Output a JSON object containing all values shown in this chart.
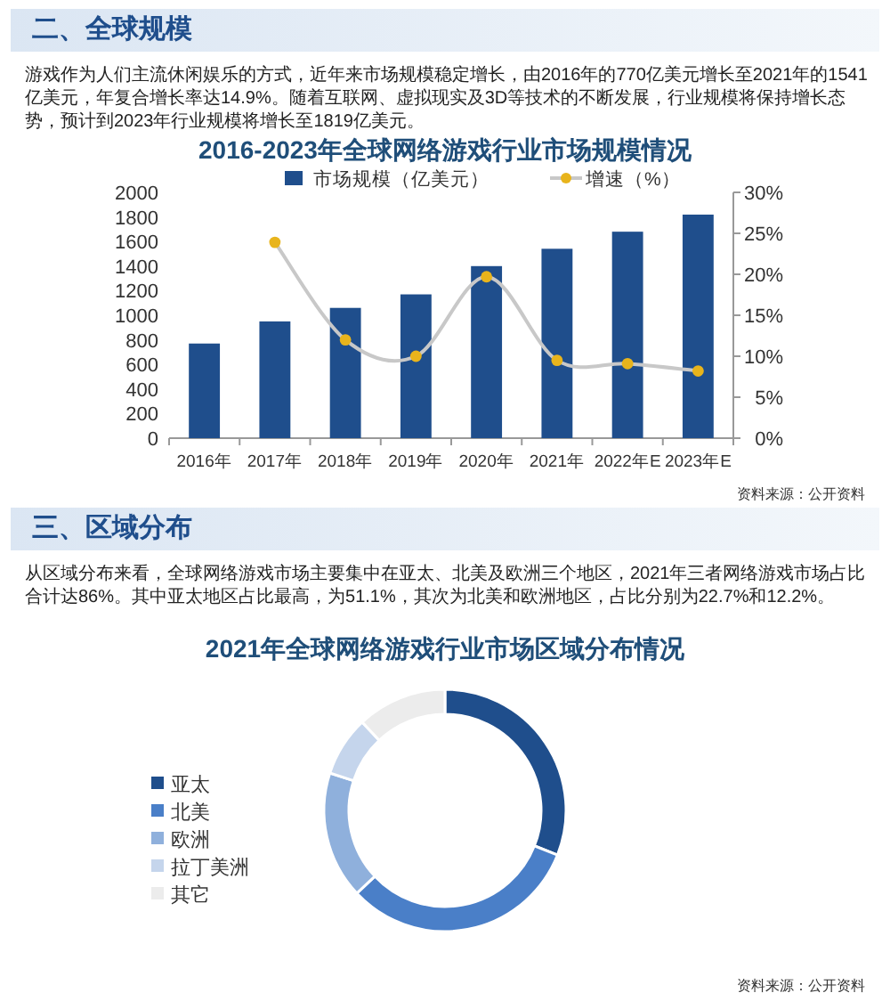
{
  "chart_data": [
    {
      "type": "bar",
      "title": "2016-2023年全球网络游戏行业市场规模情况",
      "categories": [
        "2016年",
        "2017年",
        "2018年",
        "2019年",
        "2020年",
        "2021年",
        "2022年E",
        "2023年E"
      ],
      "series": [
        {
          "name": "市场规模（亿美元）",
          "color": "#1f4e8c",
          "values": [
            770,
            950,
            1060,
            1170,
            1400,
            1541,
            1680,
            1819
          ]
        },
        {
          "name": "增速（%）",
          "type": "line",
          "axis": "y2",
          "color": "#e8b41c",
          "values": [
            null,
            23.9,
            12,
            10,
            19.7,
            9.5,
            9.1,
            8.2
          ]
        }
      ],
      "ylim": [
        0,
        2000
      ],
      "yticks": [
        0,
        200,
        400,
        600,
        800,
        1000,
        1200,
        1400,
        1600,
        1800,
        2000
      ],
      "y2lim": [
        0,
        30
      ],
      "y2ticks": [
        {
          "value": 0,
          "label": "0%"
        },
        {
          "value": 5,
          "label": "5%"
        },
        {
          "value": 10,
          "label": "10%"
        },
        {
          "value": 15,
          "label": "15%"
        },
        {
          "value": 20,
          "label": "20%"
        },
        {
          "value": 25,
          "label": "25%"
        },
        {
          "value": 30,
          "label": "30%"
        }
      ],
      "marker": "circle",
      "legend": "top",
      "grid": false,
      "annotations": [
        "二、全球规模",
        "游戏作为人们主流休闲娱乐的方式，近年来市场规模稳定增长，由2016年的770亿美元增长至2021年的1541亿美元，年复合增长率达14.9%。随着互联网、虚拟现实及3D等技术的不断发展，行业规模将保持增长态势，预计到2023年行业规模将增长至1819亿美元。",
        "资料来源：公开资料"
      ]
    },
    {
      "type": "donut",
      "title": "2021年全球网络游戏行业市场区域分布情况",
      "categories": [
        "亚太",
        "北美",
        "欧洲",
        "拉丁美洲",
        "其它"
      ],
      "values": [
        31,
        32,
        17,
        8,
        12
      ],
      "colors": [
        "#1f4e8c",
        "#4a7fc8",
        "#8fb0dc",
        "#c5d5ec",
        "#ececec"
      ],
      "legend": "left",
      "annotations": [
        "三、区域分布",
        "从区域分布来看，全球网络游戏市场主要集中在亚太、北美及欧洲三个地区，2021年三者网络游戏市场占比合计达86%。其中亚太地区占比最高，为51.1%，其次为北美和欧洲地区，占比分别为22.7%和12.2%。",
        "资料来源：公开资料"
      ]
    }
  ]
}
